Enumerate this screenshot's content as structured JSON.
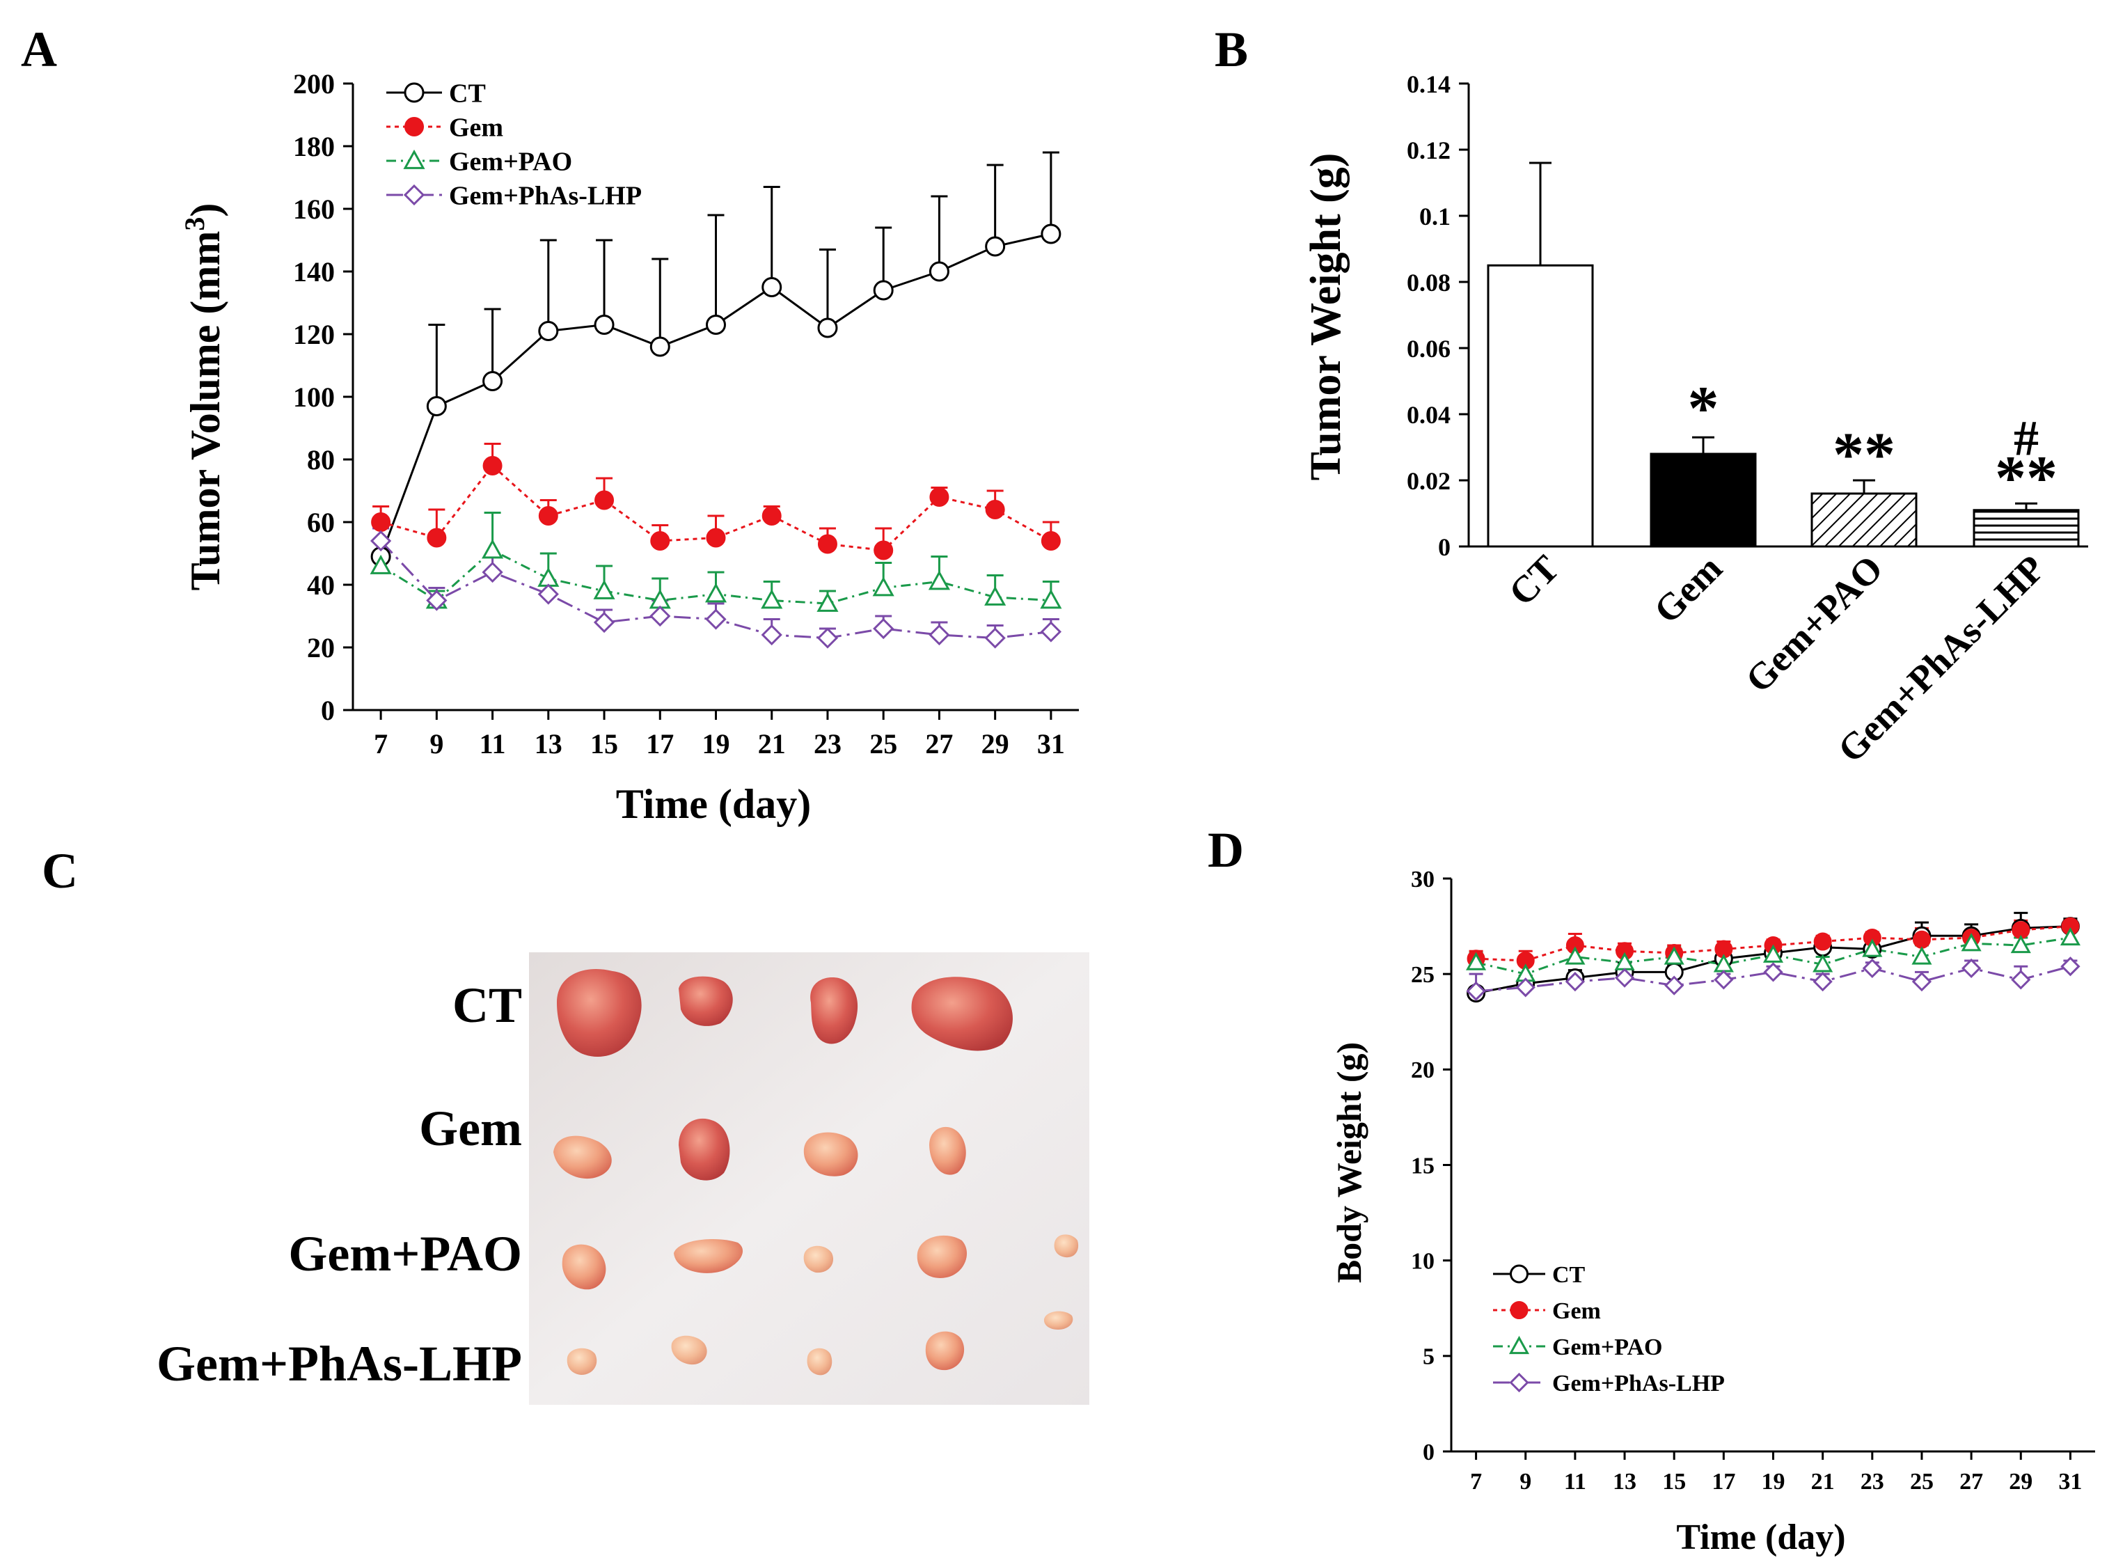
{
  "panels": {
    "a": {
      "letter": "A"
    },
    "b": {
      "letter": "B"
    },
    "c": {
      "letter": "C"
    },
    "d": {
      "letter": "D"
    }
  },
  "series_styles": [
    {
      "name": "CT",
      "color": "#000000",
      "marker": "open-circle",
      "dash": "solid"
    },
    {
      "name": "Gem",
      "color": "#e8151b",
      "marker": "filled-circle",
      "dash": "dotted"
    },
    {
      "name": "Gem+PAO",
      "color": "#1a9a4a",
      "marker": "open-triangle",
      "dash": "dash-dot"
    },
    {
      "name": "Gem+PhAs-LHP",
      "color": "#7b4aa8",
      "marker": "open-diamond",
      "dash": "long-dash-dot"
    }
  ],
  "chart_data": [
    {
      "id": "A",
      "type": "line",
      "xlabel": "Time (day)",
      "ylabel_main": "Tumor Volume (mm",
      "ylabel_sup": "3",
      "ylabel_tail": ")",
      "x": [
        7,
        9,
        11,
        13,
        15,
        17,
        19,
        21,
        23,
        25,
        27,
        29,
        31
      ],
      "xlim": [
        6,
        32
      ],
      "ylim": [
        0,
        200
      ],
      "yticks": [
        0,
        20,
        40,
        60,
        80,
        100,
        120,
        140,
        160,
        180,
        200
      ],
      "ytick_labels": [
        "0",
        "20",
        "40",
        "60",
        "80",
        "100",
        "120",
        "140",
        "160",
        "180",
        "200"
      ],
      "xtick_labels": [
        "7",
        "9",
        "11",
        "13",
        "15",
        "17",
        "19",
        "21",
        "23",
        "25",
        "27",
        "29",
        "31"
      ],
      "legend": "top-left",
      "series": [
        {
          "name": "CT",
          "values": [
            49,
            97,
            105,
            121,
            123,
            116,
            123,
            135,
            122,
            134,
            140,
            148,
            152
          ],
          "errors": [
            5,
            26,
            23,
            29,
            27,
            28,
            35,
            32,
            25,
            20,
            24,
            26,
            26
          ]
        },
        {
          "name": "Gem",
          "values": [
            60,
            55,
            78,
            62,
            67,
            54,
            55,
            62,
            53,
            51,
            68,
            64,
            54
          ],
          "errors": [
            5,
            9,
            7,
            5,
            7,
            5,
            7,
            3,
            5,
            7,
            3,
            6,
            6
          ]
        },
        {
          "name": "Gem+PAO",
          "values": [
            46,
            35,
            51,
            42,
            38,
            35,
            37,
            35,
            34,
            39,
            41,
            36,
            35
          ],
          "errors": [
            3,
            3,
            12,
            8,
            8,
            7,
            7,
            6,
            4,
            8,
            8,
            7,
            6
          ]
        },
        {
          "name": "Gem+PhAs-LHP",
          "values": [
            54,
            35,
            44,
            37,
            28,
            30,
            29,
            24,
            23,
            26,
            24,
            23,
            25
          ],
          "errors": [
            4,
            4,
            5,
            4,
            4,
            5,
            5,
            5,
            3,
            4,
            4,
            4,
            4
          ]
        }
      ]
    },
    {
      "id": "B",
      "type": "bar",
      "ylabel": "Tumor Weight (g)",
      "categories": [
        "CT",
        "Gem",
        "Gem+PAO",
        "Gem+PhAs-LHP"
      ],
      "values": [
        0.085,
        0.028,
        0.016,
        0.011
      ],
      "errors": [
        0.031,
        0.005,
        0.004,
        0.002
      ],
      "fills": [
        "open",
        "solid",
        "diagonal-hatch",
        "horizontal-hatch"
      ],
      "significance_upper": [
        "",
        "",
        "",
        "#"
      ],
      "significance_lower": [
        "",
        "*",
        "**",
        "**"
      ],
      "ylim": [
        0,
        0.14
      ],
      "yticks": [
        0,
        0.02,
        0.04,
        0.06,
        0.08,
        0.1,
        0.12,
        0.14
      ],
      "ytick_labels": [
        "0",
        "0.02",
        "0.04",
        "0.06",
        "0.08",
        "0.1",
        "0.12",
        "0.14"
      ]
    },
    {
      "id": "D",
      "type": "line",
      "xlabel": "Time (day)",
      "ylabel": "Body Weight (g)",
      "x": [
        7,
        9,
        11,
        13,
        15,
        17,
        19,
        21,
        23,
        25,
        27,
        29,
        31
      ],
      "xlim": [
        6,
        32
      ],
      "ylim": [
        0,
        30
      ],
      "yticks": [
        0,
        5,
        10,
        15,
        20,
        25,
        30
      ],
      "ytick_labels": [
        "0",
        "5",
        "10",
        "15",
        "20",
        "25",
        "30"
      ],
      "xtick_labels": [
        "7",
        "9",
        "11",
        "13",
        "15",
        "17",
        "19",
        "21",
        "23",
        "25",
        "27",
        "29",
        "31"
      ],
      "legend": "bottom-left",
      "series": [
        {
          "name": "CT",
          "values": [
            24.0,
            24.5,
            24.8,
            25.1,
            25.1,
            25.8,
            26.1,
            26.4,
            26.3,
            27.0,
            27.0,
            27.4,
            27.5
          ],
          "errors": [
            0.3,
            0.4,
            0.4,
            0.5,
            0.4,
            0.4,
            0.4,
            0.4,
            0.4,
            0.7,
            0.6,
            0.8,
            0.4
          ]
        },
        {
          "name": "Gem",
          "values": [
            25.8,
            25.7,
            26.5,
            26.2,
            26.1,
            26.3,
            26.5,
            26.7,
            26.9,
            26.8,
            26.9,
            27.3,
            27.5
          ],
          "errors": [
            0.4,
            0.5,
            0.6,
            0.4,
            0.4,
            0.4,
            0.3,
            0.3,
            0.3,
            0.6,
            0.4,
            0.5,
            0.3
          ]
        },
        {
          "name": "Gem+PAO",
          "values": [
            25.6,
            25.0,
            25.9,
            25.6,
            25.9,
            25.5,
            26.0,
            25.5,
            26.3,
            25.9,
            26.6,
            26.5,
            26.9
          ],
          "errors": [
            0.5,
            0.6,
            0.5,
            0.4,
            0.5,
            0.5,
            0.4,
            0.4,
            0.4,
            0.6,
            0.5,
            0.4,
            0.4
          ]
        },
        {
          "name": "Gem+PhAs-LHP",
          "values": [
            24.1,
            24.3,
            24.6,
            24.8,
            24.4,
            24.7,
            25.1,
            24.6,
            25.3,
            24.6,
            25.3,
            24.7,
            25.4
          ],
          "errors": [
            0.9,
            0.4,
            0.3,
            0.4,
            0.4,
            0.3,
            0.3,
            0.4,
            0.3,
            0.5,
            0.4,
            0.7,
            0.3
          ]
        }
      ]
    }
  ],
  "photo": {
    "row_labels": [
      "CT",
      "Gem",
      "Gem+PAO",
      "Gem+PhAs-LHP"
    ],
    "tumor_counts": [
      4,
      4,
      5,
      5
    ],
    "background_color": "#ece8e7",
    "tumor_color": "#e98a75"
  }
}
